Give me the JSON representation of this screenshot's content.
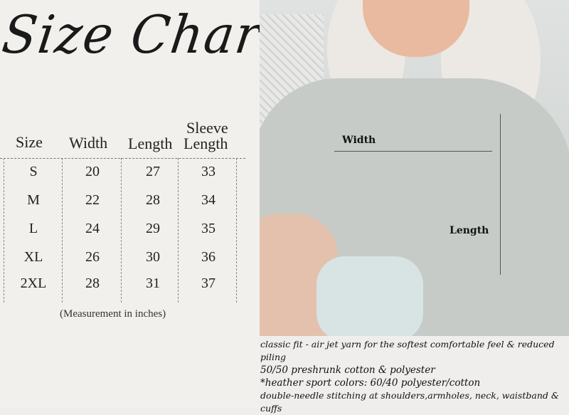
{
  "title": "Size Chart",
  "table": {
    "headers": [
      "Size",
      "Width",
      "Length",
      "Sleeve Length"
    ],
    "sleeve_header_top": "Sleeve",
    "sleeve_header_bottom": "Length",
    "rows": [
      [
        "S",
        "20",
        "27",
        "33"
      ],
      [
        "M",
        "22",
        "28",
        "34"
      ],
      [
        "L",
        "24",
        "29",
        "35"
      ],
      [
        "XL",
        "26",
        "30",
        "36"
      ],
      [
        "2XL",
        "28",
        "31",
        "37"
      ]
    ],
    "caption": "(Measurement in inches)"
  },
  "photo": {
    "width_label": "Width",
    "length_label": "Length",
    "sweatshirt_color": "#c6cbc8"
  },
  "description": [
    "classic fit - air jet yarn for the softest comfortable feel & reduced piling",
    "50/50 preshrunk cotton & polyester",
    "*heather sport colors: 60/40 polyester/cotton",
    "double-needle stitching at shoulders,armholes, neck, waistband & cuffs"
  ]
}
